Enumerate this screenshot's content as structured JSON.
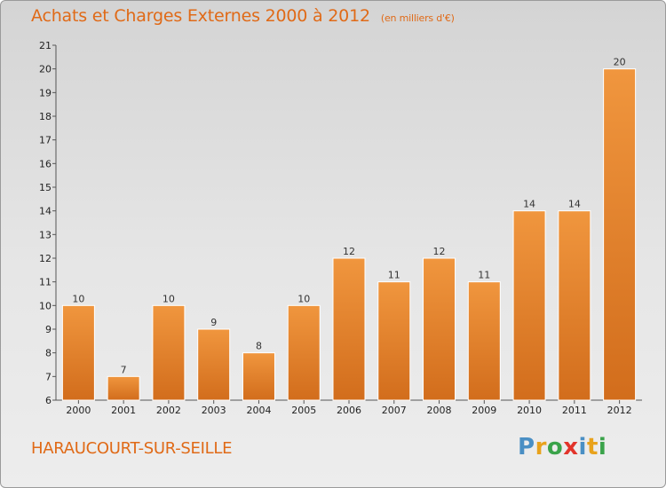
{
  "title": "Achats et Charges Externes 2000 à 2012",
  "subtitle": "(en milliers d'€)",
  "commune": "HARAUCOURT-SUR-SEILLE",
  "logo": {
    "letters": [
      "P",
      "r",
      "o",
      "x",
      "i",
      "t",
      "i"
    ],
    "colors": [
      "#4a8fc4",
      "#e8a21c",
      "#3aa34a",
      "#e2342b",
      "#4a8fc4",
      "#e8a21c",
      "#3aa34a"
    ]
  },
  "colors": {
    "bar": "#f0963e",
    "bar_dark": "#d26d1c",
    "accent": "#e06a17"
  },
  "chart_data": {
    "type": "bar",
    "title": "Achats et Charges Externes 2000 à 2012",
    "subtitle": "(en milliers d'€)",
    "categories": [
      "2000",
      "2001",
      "2002",
      "2003",
      "2004",
      "2005",
      "2006",
      "2007",
      "2008",
      "2009",
      "2010",
      "2011",
      "2012"
    ],
    "values": [
      10,
      7,
      10,
      9,
      8,
      10,
      12,
      11,
      12,
      11,
      14,
      14,
      20
    ],
    "value_labels": [
      "10",
      "7",
      "10",
      "9",
      "8",
      "10",
      "12",
      "11",
      "12",
      "11",
      "14",
      "14",
      "20"
    ],
    "ylim": [
      6,
      21
    ],
    "yticks": [
      "6",
      "7",
      "8",
      "9",
      "10",
      "11",
      "12",
      "13",
      "14",
      "15",
      "16",
      "17",
      "18",
      "19",
      "20",
      "21"
    ],
    "grid": false,
    "xlabel": "",
    "ylabel": ""
  }
}
